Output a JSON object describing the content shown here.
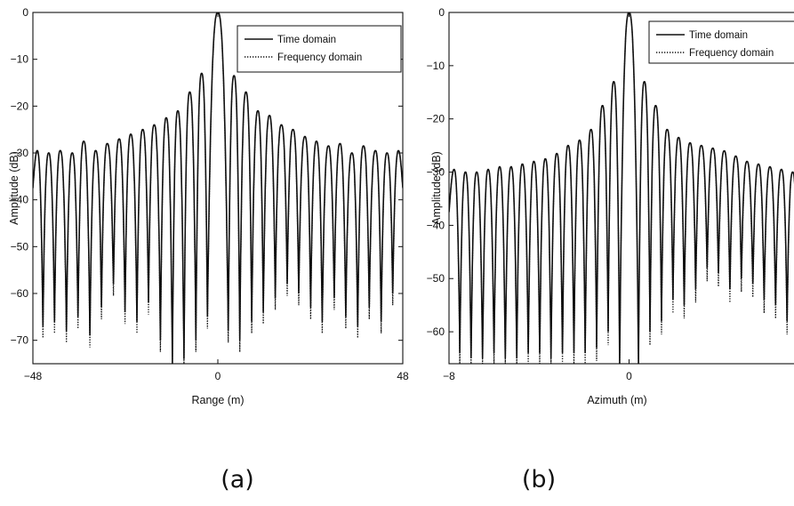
{
  "panels": [
    {
      "caption": "(a)",
      "chart_data": {
        "type": "line",
        "xlabel": "Range (m)",
        "ylabel": "Amplitude (dB)",
        "xlim": [
          -48,
          48
        ],
        "ylim": [
          -75,
          0
        ],
        "xticks": [
          -48,
          0,
          48
        ],
        "yticks": [
          0,
          -10,
          -20,
          -30,
          -40,
          -50,
          -60,
          -70
        ],
        "grid": false,
        "legend_position": "top-right",
        "series": [
          {
            "name": "Time domain",
            "style": "solid",
            "color": "#111111"
          },
          {
            "name": "Frequency domain",
            "style": "dotted",
            "color": "#111111"
          }
        ],
        "main_lobe": {
          "x": 0,
          "y": 0
        },
        "sidelobe_peaks": {
          "x": [
            -46.9,
            -43.9,
            -40.9,
            -37.8,
            -34.8,
            -31.7,
            -28.7,
            -25.6,
            -22.6,
            -19.5,
            -16.5,
            -13.4,
            -10.4,
            -7.3,
            -4.2,
            4.2,
            7.3,
            10.4,
            13.4,
            16.5,
            19.5,
            22.6,
            25.6,
            28.7,
            31.7,
            34.8,
            37.8,
            40.9,
            43.9,
            46.9
          ],
          "y": [
            -29.5,
            -30,
            -29.5,
            -30,
            -27.5,
            -29.5,
            -28,
            -27,
            -26,
            -25,
            -24,
            -22.5,
            -21,
            -17,
            -13,
            -13.5,
            -17,
            -21,
            -22,
            -24,
            -25,
            -26.5,
            -27.5,
            -28.5,
            -28,
            -30,
            -28.5,
            -29.5,
            -30,
            -29.5
          ]
        },
        "nulls": {
          "x": [
            -45.4,
            -42.4,
            -39.3,
            -36.3,
            -33.2,
            -30.2,
            -27.1,
            -24.1,
            -21.0,
            -18.0,
            -14.9,
            -11.8,
            -8.8,
            -5.7,
            -2.7,
            2.7,
            5.7,
            8.8,
            11.8,
            14.9,
            18.0,
            21.0,
            24.1,
            27.1,
            30.2,
            33.2,
            36.3,
            39.3,
            42.4,
            45.4
          ],
          "y": [
            -67,
            -66,
            -68,
            -65,
            -69,
            -63,
            -58,
            -64,
            -66,
            -62,
            -70,
            -75,
            -74,
            -70,
            -65,
            -68,
            -70,
            -66,
            -64,
            -61,
            -58,
            -60,
            -63,
            -66,
            -61,
            -65,
            -67,
            -63,
            -66,
            -60
          ]
        }
      }
    },
    {
      "caption": "(b)",
      "chart_data": {
        "type": "line",
        "xlabel": "Azimuth (m)",
        "ylabel": "Amplitude (dB)",
        "xlim": [
          -8,
          8
        ],
        "ylim": [
          -66,
          0
        ],
        "xticks": [
          -8,
          0
        ],
        "yticks": [
          0,
          -10,
          -20,
          -30,
          -40,
          -50,
          -60
        ],
        "grid": false,
        "legend_position": "top-right",
        "series": [
          {
            "name": "Time domain",
            "style": "solid",
            "color": "#111111"
          },
          {
            "name": "Frequency domain",
            "style": "dotted",
            "color": "#111111"
          }
        ],
        "main_lobe": {
          "x": 0,
          "y": 0
        },
        "sidelobe_peaks": {
          "x": [
            -7.78,
            -7.27,
            -6.77,
            -6.26,
            -5.75,
            -5.24,
            -4.74,
            -4.23,
            -3.72,
            -3.21,
            -2.71,
            -2.2,
            -1.69,
            -1.18,
            -0.68,
            0.68,
            1.18,
            1.69,
            2.2,
            2.71,
            3.21,
            3.72,
            4.23,
            4.74,
            5.24,
            5.75,
            6.26,
            6.77,
            7.27,
            7.78
          ],
          "y": [
            -29.5,
            -30,
            -30,
            -29.5,
            -29,
            -29,
            -28.5,
            -28,
            -27.5,
            -26.5,
            -25,
            -24,
            -22,
            -17.5,
            -13,
            -13,
            -17.5,
            -22,
            -23.5,
            -24.5,
            -25,
            -25.5,
            -26,
            -27,
            -28,
            -28.5,
            -29,
            -29.5,
            -30,
            -29.5
          ]
        },
        "nulls": {
          "x": [
            -7.52,
            -7.02,
            -6.51,
            -6.0,
            -5.5,
            -4.99,
            -4.48,
            -3.97,
            -3.47,
            -2.96,
            -2.45,
            -1.95,
            -1.44,
            -0.93,
            -0.42,
            0.42,
            0.93,
            1.44,
            1.95,
            2.45,
            2.96,
            3.47,
            3.97,
            4.48,
            4.99,
            5.5,
            6.0,
            6.51,
            7.02,
            7.52
          ],
          "y": [
            -64,
            -65,
            -65,
            -64,
            -65,
            -65,
            -64,
            -64,
            -65,
            -64,
            -64,
            -64,
            -63,
            -60,
            -66,
            -66,
            -60,
            -58,
            -54,
            -55,
            -52,
            -48,
            -49,
            -52,
            -50,
            -51,
            -54,
            -55,
            -58,
            -62
          ]
        }
      }
    }
  ]
}
